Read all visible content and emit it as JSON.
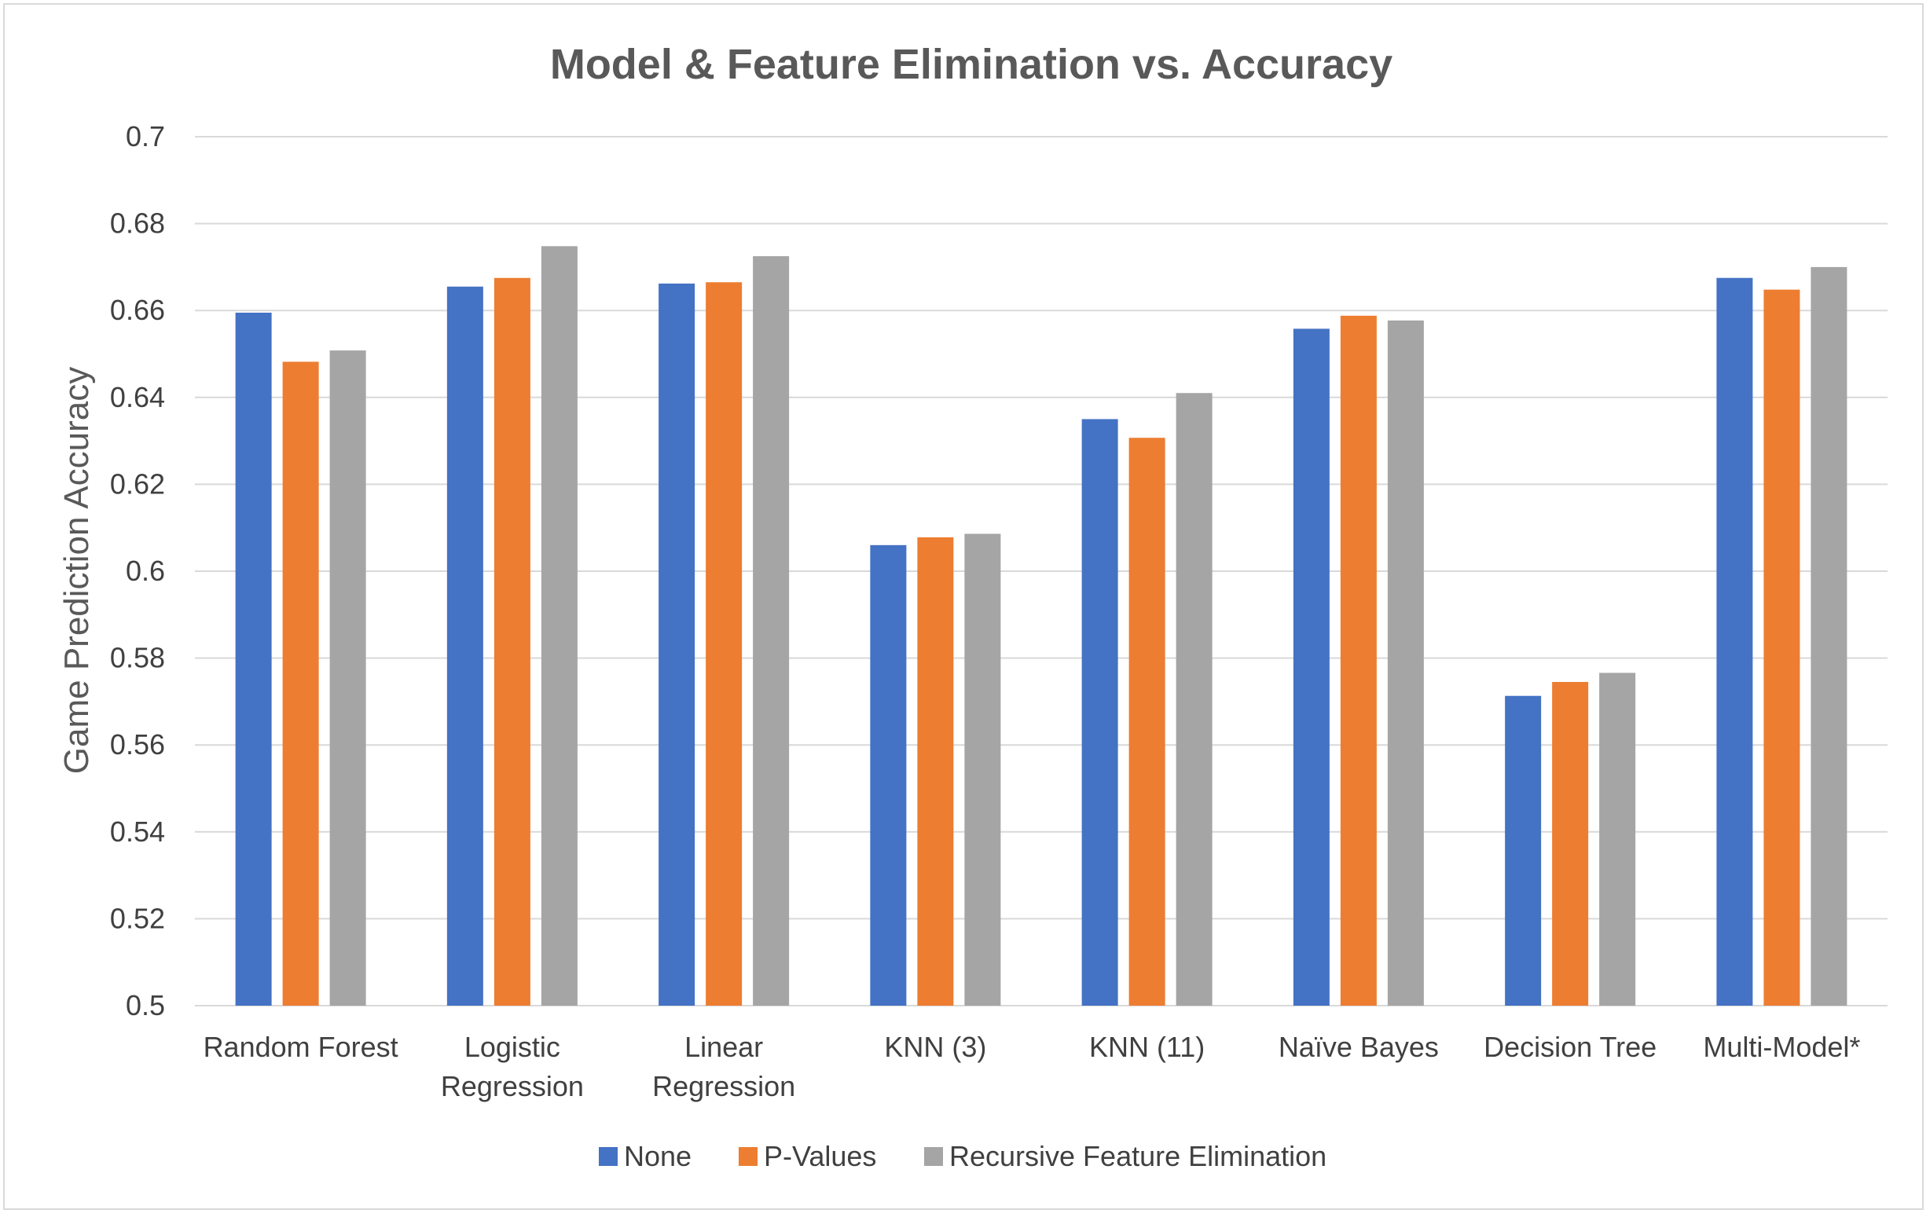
{
  "chart_data": {
    "type": "bar",
    "title": "Model & Feature Elimination vs. Accuracy",
    "xlabel": "",
    "ylabel": "Game Prediction Accuracy",
    "ylim": [
      0.5,
      0.7
    ],
    "yticks": [
      "0.5",
      "0.52",
      "0.54",
      "0.56",
      "0.58",
      "0.6",
      "0.62",
      "0.64",
      "0.66",
      "0.68",
      "0.7"
    ],
    "grid": true,
    "legend_position": "bottom",
    "categories": [
      [
        "Random Forest"
      ],
      [
        "Logistic",
        "Regression"
      ],
      [
        "Linear",
        "Regression"
      ],
      [
        "KNN (3)"
      ],
      [
        "KNN (11)"
      ],
      [
        "Naïve Bayes"
      ],
      [
        "Decision Tree"
      ],
      [
        "Multi-Model*"
      ]
    ],
    "series": [
      {
        "name": "None",
        "color": "#4472c4",
        "values": [
          0.6595,
          0.6655,
          0.6662,
          0.606,
          0.635,
          0.6558,
          0.5713,
          0.6675
        ]
      },
      {
        "name": "P-Values",
        "color": "#ed7d31",
        "values": [
          0.6482,
          0.6675,
          0.6665,
          0.6078,
          0.6307,
          0.6588,
          0.5745,
          0.6648
        ]
      },
      {
        "name": "Recursive Feature Elimination",
        "color": "#a5a5a5",
        "values": [
          0.6508,
          0.6748,
          0.6725,
          0.6086,
          0.641,
          0.6577,
          0.5766,
          0.67
        ]
      }
    ]
  }
}
